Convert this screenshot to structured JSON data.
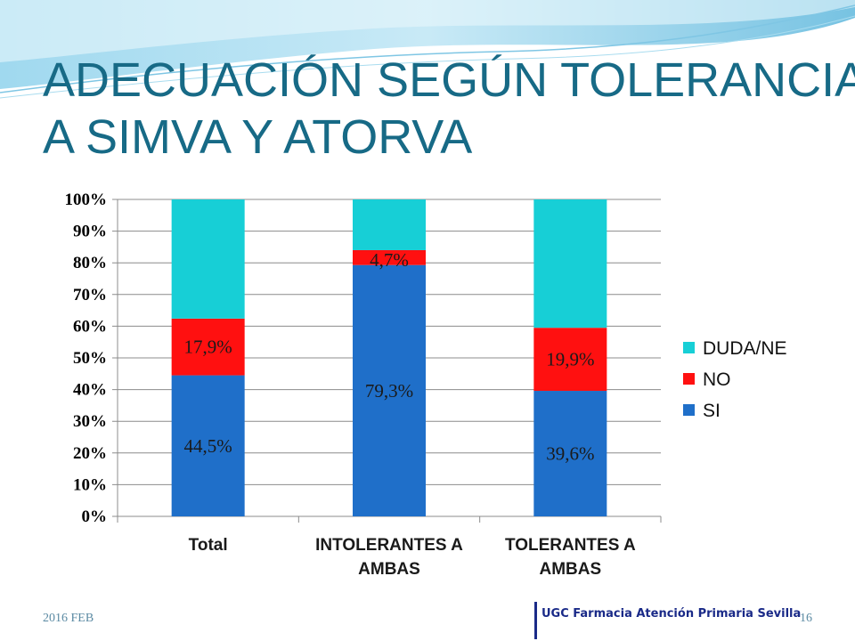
{
  "slide": {
    "title_line1": "ADECUACIÓN SEGÚN TOLERANCIA",
    "title_line2": "A SIMVA Y ATORVA",
    "footer_date": "2016 FEB",
    "page_number": "16",
    "organization": "UGC Farmacia Atención Primaria Sevilla"
  },
  "colors": {
    "title": "#176a86",
    "SI": "#1f6fc9",
    "NO": "#ff1010",
    "DUDA/NE": "#17cfd6",
    "grid": "#8c8c8c"
  },
  "chart_data": {
    "type": "bar",
    "stacked": true,
    "percent_stacked": true,
    "categories": [
      "Total",
      "INTOLERANTES A AMBAS",
      "TOLERANTES A AMBAS"
    ],
    "category_labels": [
      [
        "Total"
      ],
      [
        "INTOLERANTES A",
        "AMBAS"
      ],
      [
        "TOLERANTES A",
        "AMBAS"
      ]
    ],
    "series": [
      {
        "name": "SI",
        "values": [
          44.5,
          79.3,
          39.6
        ],
        "labels": [
          "44,5%",
          "79,3%",
          "39,6%"
        ]
      },
      {
        "name": "NO",
        "values": [
          17.9,
          4.7,
          19.9
        ],
        "labels": [
          "17,9%",
          "4,7%",
          "19,9%"
        ]
      },
      {
        "name": "DUDA/NE",
        "values": [
          37.6,
          16.0,
          40.5
        ],
        "labels": [
          "",
          "",
          ""
        ]
      }
    ],
    "y_ticks": [
      "0%",
      "10%",
      "20%",
      "30%",
      "40%",
      "50%",
      "60%",
      "70%",
      "80%",
      "90%",
      "100%"
    ],
    "ylim": [
      0,
      100
    ],
    "grid": true,
    "legend": {
      "placement": "right",
      "order": [
        "DUDA/NE",
        "NO",
        "SI"
      ]
    }
  }
}
